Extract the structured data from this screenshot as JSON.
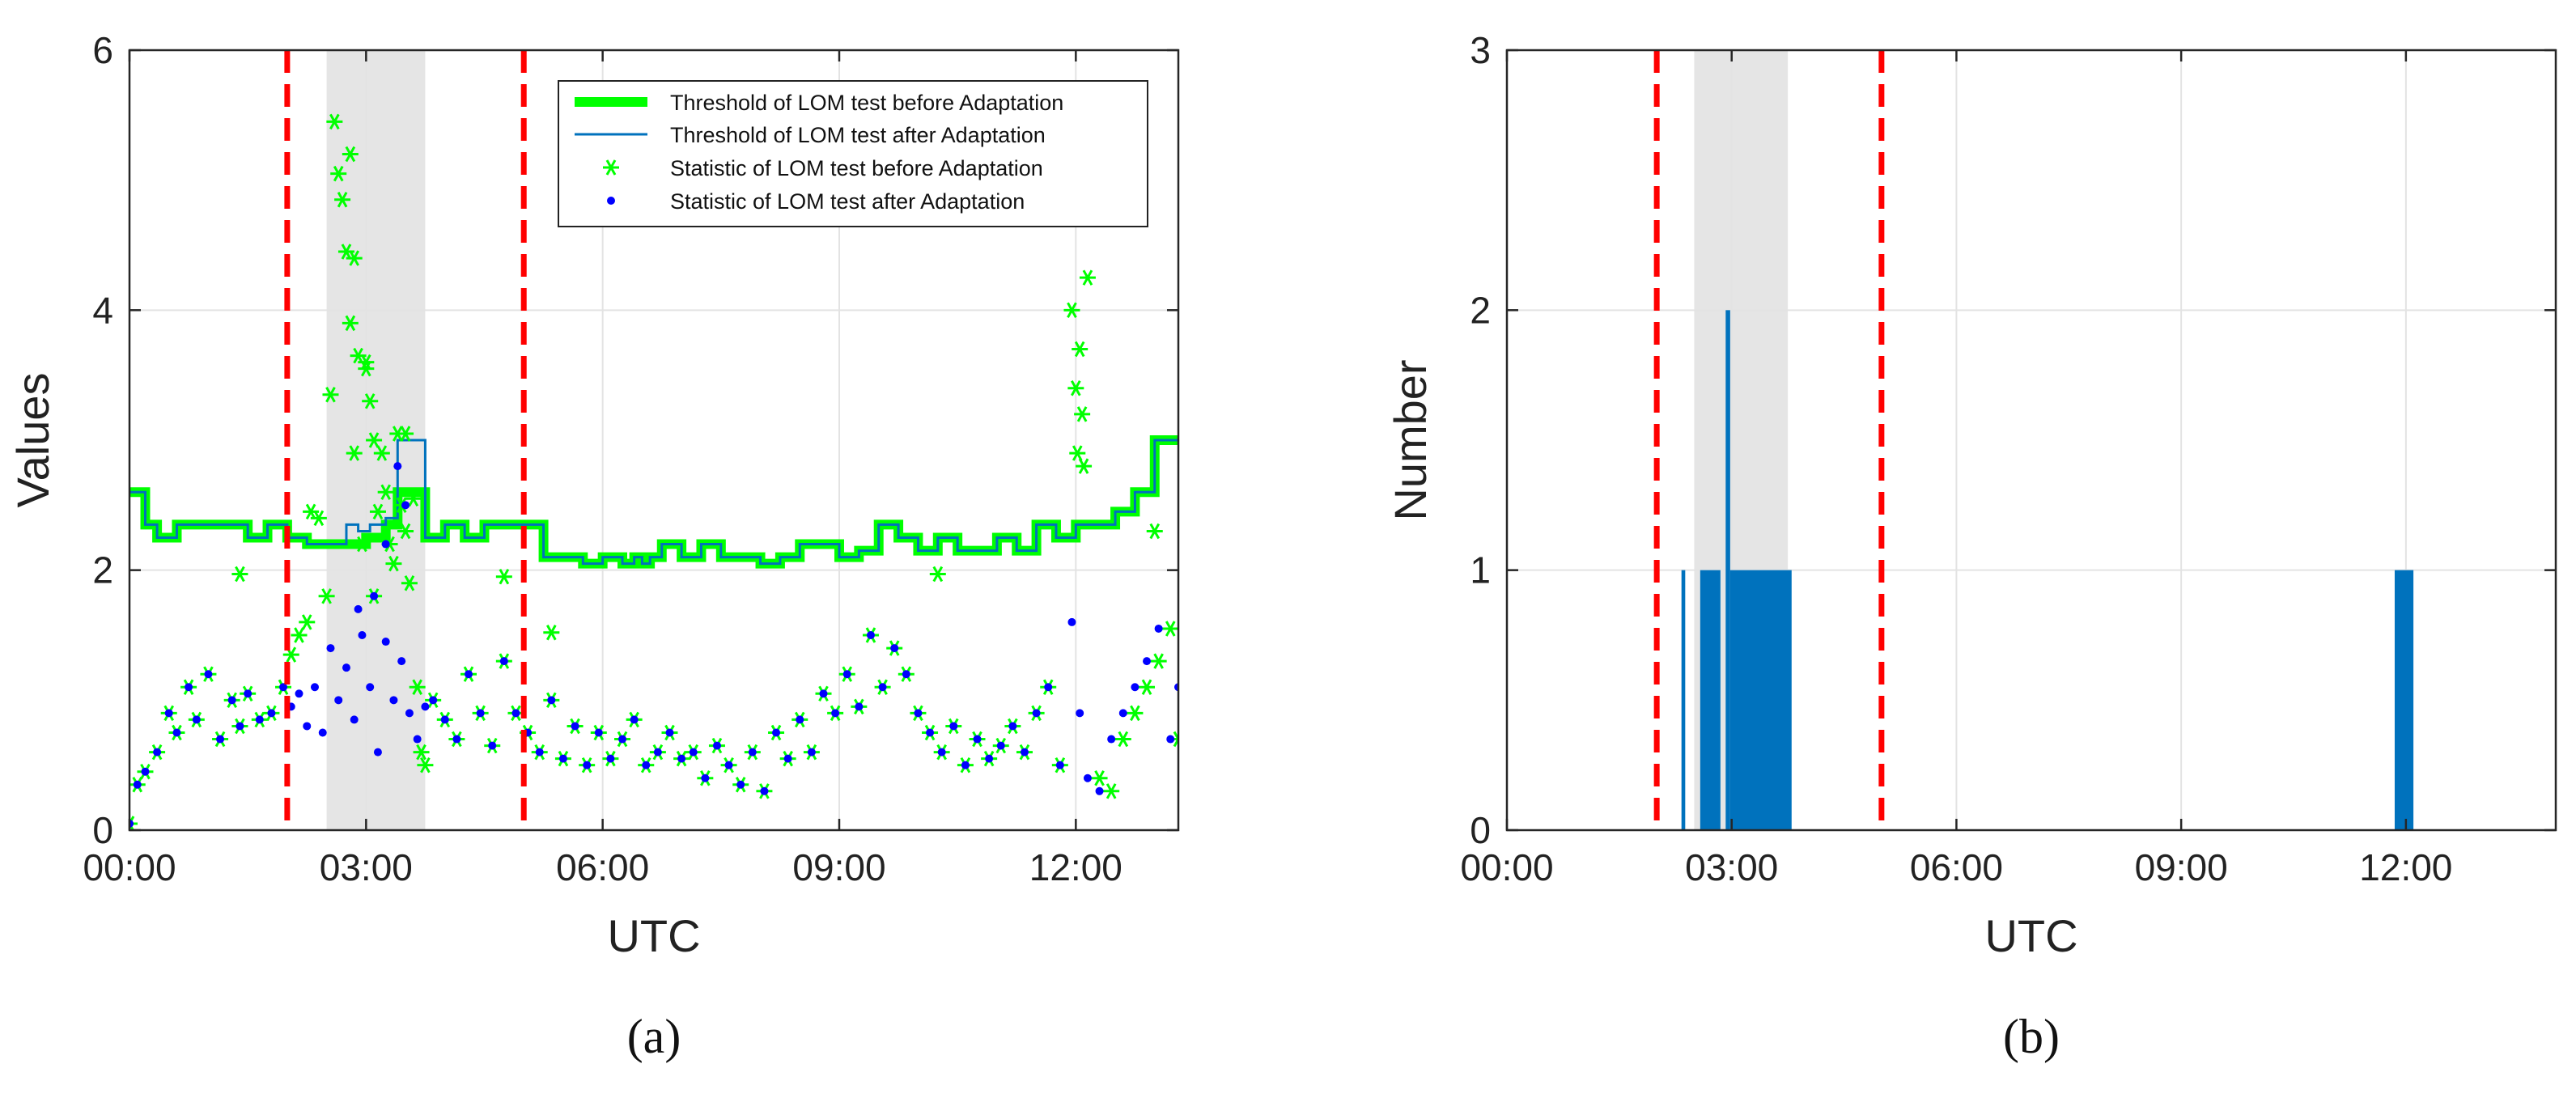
{
  "chart_data": [
    {
      "type": "line",
      "panel": "(a)",
      "caption": "(a)",
      "xlabel": "UTC",
      "ylabel": "Values",
      "xlim": [
        0,
        13.3
      ],
      "ylim": [
        0,
        6
      ],
      "x_ticks": [
        0,
        3,
        6,
        9,
        12
      ],
      "x_tick_labels": [
        "00:00",
        "03:00",
        "06:00",
        "09:00",
        "12:00"
      ],
      "y_ticks": [
        0,
        2,
        4,
        6
      ],
      "y_tick_labels": [
        "0",
        "2",
        "4",
        "6"
      ],
      "grid": true,
      "legend_position": "top-right",
      "shaded_region": {
        "x": [
          2.5,
          3.75
        ],
        "color": "#e5e5e5"
      },
      "vertical_lines": [
        {
          "x": 2.0,
          "color": "#ff0000",
          "style": "dashed"
        },
        {
          "x": 5.0,
          "color": "#ff0000",
          "style": "dashed"
        }
      ],
      "series": [
        {
          "name": "Threshold of LOM test before Adaptation",
          "kind": "step",
          "color": "#00ff00",
          "x": [
            0,
            0.2,
            0.35,
            0.6,
            1.0,
            1.5,
            1.75,
            2.0,
            2.25,
            2.5,
            2.75,
            3.0,
            3.25,
            3.4,
            3.55,
            3.75,
            4.0,
            4.25,
            4.5,
            4.75,
            5.0,
            5.25,
            5.5,
            5.75,
            6.0,
            6.25,
            6.4,
            6.5,
            6.6,
            6.75,
            7.0,
            7.25,
            7.5,
            7.75,
            8.0,
            8.25,
            8.5,
            9.0,
            9.25,
            9.5,
            9.75,
            10.0,
            10.25,
            10.5,
            11.0,
            11.25,
            11.5,
            11.75,
            12.0,
            12.25,
            12.5,
            12.75,
            13.0,
            13.3
          ],
          "values": [
            2.6,
            2.35,
            2.25,
            2.35,
            2.35,
            2.25,
            2.35,
            2.25,
            2.2,
            2.2,
            2.2,
            2.25,
            2.35,
            2.6,
            2.6,
            2.25,
            2.35,
            2.25,
            2.35,
            2.35,
            2.35,
            2.1,
            2.1,
            2.05,
            2.1,
            2.05,
            2.1,
            2.05,
            2.1,
            2.2,
            2.1,
            2.2,
            2.1,
            2.1,
            2.05,
            2.1,
            2.2,
            2.1,
            2.15,
            2.35,
            2.25,
            2.15,
            2.25,
            2.15,
            2.25,
            2.15,
            2.35,
            2.25,
            2.35,
            2.35,
            2.45,
            2.6,
            3.0,
            3.0
          ]
        },
        {
          "name": "Threshold of LOM test after Adaptation",
          "kind": "step",
          "color": "#0072bd",
          "x": [
            0,
            0.2,
            0.35,
            0.6,
            1.0,
            1.5,
            1.75,
            2.0,
            2.25,
            2.5,
            2.75,
            2.9,
            3.05,
            3.25,
            3.4,
            3.75,
            4.0,
            4.25,
            4.5,
            4.75,
            5.0,
            5.25,
            5.5,
            5.75,
            6.0,
            6.25,
            6.4,
            6.5,
            6.6,
            6.75,
            7.0,
            7.25,
            7.5,
            7.75,
            8.0,
            8.25,
            8.5,
            9.0,
            9.25,
            9.5,
            9.75,
            10.0,
            10.25,
            10.5,
            11.0,
            11.25,
            11.5,
            11.75,
            12.0,
            12.25,
            12.5,
            12.75,
            13.0,
            13.3
          ],
          "values": [
            2.6,
            2.35,
            2.25,
            2.35,
            2.35,
            2.25,
            2.35,
            2.25,
            2.2,
            2.2,
            2.35,
            2.3,
            2.35,
            2.4,
            3.0,
            2.25,
            2.35,
            2.25,
            2.35,
            2.35,
            2.35,
            2.1,
            2.1,
            2.05,
            2.1,
            2.05,
            2.1,
            2.05,
            2.1,
            2.2,
            2.1,
            2.2,
            2.1,
            2.1,
            2.05,
            2.1,
            2.2,
            2.1,
            2.15,
            2.35,
            2.25,
            2.15,
            2.25,
            2.15,
            2.25,
            2.15,
            2.35,
            2.25,
            2.35,
            2.35,
            2.45,
            2.6,
            3.0,
            3.0
          ]
        },
        {
          "name": "Statistic of LOM test before Adaptation",
          "kind": "scatter",
          "marker": "asterisk",
          "color": "#00ff00",
          "x": [
            0.0,
            0.1,
            0.2,
            0.35,
            0.5,
            0.6,
            0.75,
            0.85,
            1.0,
            1.15,
            1.3,
            1.4,
            1.5,
            1.65,
            1.8,
            1.95,
            2.05,
            2.15,
            2.25,
            2.3,
            2.4,
            2.5,
            2.55,
            2.6,
            2.65,
            2.7,
            2.75,
            2.8,
            2.85,
            2.9,
            2.95,
            3.0,
            3.05,
            3.1,
            3.15,
            3.2,
            3.25,
            3.3,
            3.35,
            3.4,
            3.45,
            3.5,
            3.55,
            3.6,
            3.65,
            3.7,
            3.75,
            3.85,
            4.0,
            4.15,
            4.3,
            4.45,
            4.6,
            4.75,
            4.9,
            5.05,
            5.2,
            5.35,
            5.5,
            5.65,
            5.8,
            5.95,
            6.1,
            6.25,
            6.4,
            6.55,
            6.7,
            6.85,
            7.0,
            7.15,
            7.3,
            7.45,
            7.6,
            7.75,
            7.9,
            8.05,
            8.2,
            8.35,
            8.5,
            8.65,
            8.8,
            8.95,
            9.1,
            9.25,
            9.4,
            9.55,
            9.7,
            9.85,
            10.0,
            10.15,
            10.3,
            10.45,
            10.6,
            10.75,
            10.9,
            11.05,
            11.2,
            11.35,
            11.5,
            11.65,
            11.8,
            11.95,
            12.0,
            12.02,
            12.05,
            12.08,
            12.1,
            12.15,
            12.3,
            12.45,
            12.6,
            12.75,
            12.9,
            13.05,
            13.2,
            13.3,
            1.4,
            2.8,
            2.85,
            3.0,
            3.1,
            3.5,
            4.75,
            5.35,
            10.25,
            13.0
          ],
          "values": [
            0.05,
            0.35,
            0.45,
            0.6,
            0.9,
            0.75,
            1.1,
            0.85,
            1.2,
            0.7,
            1.0,
            0.8,
            1.05,
            0.85,
            0.9,
            1.1,
            1.35,
            1.5,
            1.6,
            2.45,
            2.4,
            1.8,
            3.35,
            5.45,
            5.05,
            4.85,
            4.45,
            3.9,
            2.9,
            3.65,
            2.2,
            3.55,
            3.3,
            1.8,
            2.45,
            2.9,
            2.6,
            2.2,
            2.05,
            3.05,
            2.5,
            2.3,
            1.9,
            2.55,
            1.1,
            0.6,
            0.5,
            1.0,
            0.85,
            0.7,
            1.2,
            0.9,
            0.65,
            1.3,
            0.9,
            0.75,
            0.6,
            1.0,
            0.55,
            0.8,
            0.5,
            0.75,
            0.55,
            0.7,
            0.85,
            0.5,
            0.6,
            0.75,
            0.55,
            0.6,
            0.4,
            0.65,
            0.5,
            0.35,
            0.6,
            0.3,
            0.75,
            0.55,
            0.85,
            0.6,
            1.05,
            0.9,
            1.2,
            0.95,
            1.5,
            1.1,
            1.4,
            1.2,
            0.9,
            0.75,
            0.6,
            0.8,
            0.5,
            0.7,
            0.55,
            0.65,
            0.8,
            0.6,
            0.9,
            1.1,
            0.5,
            4.0,
            3.4,
            2.9,
            3.7,
            3.2,
            2.8,
            4.25,
            0.4,
            0.3,
            0.7,
            0.9,
            1.1,
            1.3,
            1.55,
            0.7,
            1.97,
            5.2,
            4.4,
            3.6,
            3.0,
            3.05,
            1.95,
            1.52,
            1.97,
            2.3
          ]
        },
        {
          "name": "Statistic of LOM test after Adaptation",
          "kind": "scatter",
          "marker": "dot",
          "color": "#0000ff",
          "x": [
            0.0,
            0.1,
            0.2,
            0.35,
            0.5,
            0.6,
            0.75,
            0.85,
            1.0,
            1.15,
            1.3,
            1.4,
            1.5,
            1.65,
            1.8,
            1.95,
            2.05,
            2.15,
            2.25,
            2.35,
            2.45,
            2.55,
            2.65,
            2.75,
            2.85,
            2.95,
            3.05,
            3.15,
            3.25,
            3.35,
            3.45,
            3.55,
            3.65,
            3.75,
            3.85,
            4.0,
            4.15,
            4.3,
            4.45,
            4.6,
            4.75,
            4.9,
            5.05,
            5.2,
            5.35,
            5.5,
            5.65,
            5.8,
            5.95,
            6.1,
            6.25,
            6.4,
            6.55,
            6.7,
            6.85,
            7.0,
            7.15,
            7.3,
            7.45,
            7.6,
            7.75,
            7.9,
            8.05,
            8.2,
            8.35,
            8.5,
            8.65,
            8.8,
            8.95,
            9.1,
            9.25,
            9.4,
            9.55,
            9.7,
            9.85,
            10.0,
            10.15,
            10.3,
            10.45,
            10.6,
            10.75,
            10.9,
            11.05,
            11.2,
            11.35,
            11.5,
            11.65,
            11.8,
            11.95,
            12.05,
            12.15,
            12.3,
            12.45,
            12.6,
            12.75,
            12.9,
            13.05,
            13.2,
            13.3,
            3.4,
            3.5,
            2.9,
            3.1,
            3.25
          ],
          "values": [
            0.05,
            0.35,
            0.45,
            0.6,
            0.9,
            0.75,
            1.1,
            0.85,
            1.2,
            0.7,
            1.0,
            0.8,
            1.05,
            0.85,
            0.9,
            1.1,
            0.95,
            1.05,
            0.8,
            1.1,
            0.75,
            1.4,
            1.0,
            1.25,
            0.85,
            1.5,
            1.1,
            0.6,
            1.45,
            1.0,
            1.3,
            0.9,
            0.7,
            0.95,
            1.0,
            0.85,
            0.7,
            1.2,
            0.9,
            0.65,
            1.3,
            0.9,
            0.75,
            0.6,
            1.0,
            0.55,
            0.8,
            0.5,
            0.75,
            0.55,
            0.7,
            0.85,
            0.5,
            0.6,
            0.75,
            0.55,
            0.6,
            0.4,
            0.65,
            0.5,
            0.35,
            0.6,
            0.3,
            0.75,
            0.55,
            0.85,
            0.6,
            1.05,
            0.9,
            1.2,
            0.95,
            1.5,
            1.1,
            1.4,
            1.2,
            0.9,
            0.75,
            0.6,
            0.8,
            0.5,
            0.7,
            0.55,
            0.65,
            0.8,
            0.6,
            0.9,
            1.1,
            0.5,
            1.6,
            0.9,
            0.4,
            0.3,
            0.7,
            0.9,
            1.1,
            1.3,
            1.55,
            0.7,
            1.1,
            2.8,
            2.5,
            1.7,
            1.8,
            2.2
          ]
        }
      ]
    },
    {
      "type": "bar",
      "panel": "(b)",
      "caption": "(b)",
      "xlabel": "UTC",
      "ylabel": "Number",
      "xlim": [
        0,
        14
      ],
      "ylim": [
        0,
        3
      ],
      "x_ticks": [
        0,
        3,
        6,
        9,
        12
      ],
      "x_tick_labels": [
        "00:00",
        "03:00",
        "06:00",
        "09:00",
        "12:00"
      ],
      "y_ticks": [
        0,
        1,
        2,
        3
      ],
      "y_tick_labels": [
        "0",
        "1",
        "2",
        "3"
      ],
      "grid": true,
      "shaded_region": {
        "x": [
          2.5,
          3.75
        ],
        "color": "#e5e5e5"
      },
      "vertical_lines": [
        {
          "x": 2.0,
          "color": "#ff0000",
          "style": "dashed"
        },
        {
          "x": 5.0,
          "color": "#ff0000",
          "style": "dashed"
        }
      ],
      "color": "#0072bd",
      "bars": [
        {
          "x0": 2.33,
          "x1": 2.38,
          "value": 1
        },
        {
          "x0": 2.58,
          "x1": 2.85,
          "value": 1
        },
        {
          "x0": 2.92,
          "x1": 2.98,
          "value": 2
        },
        {
          "x0": 2.98,
          "x1": 3.8,
          "value": 1
        },
        {
          "x0": 11.85,
          "x1": 12.1,
          "value": 1
        }
      ]
    }
  ]
}
